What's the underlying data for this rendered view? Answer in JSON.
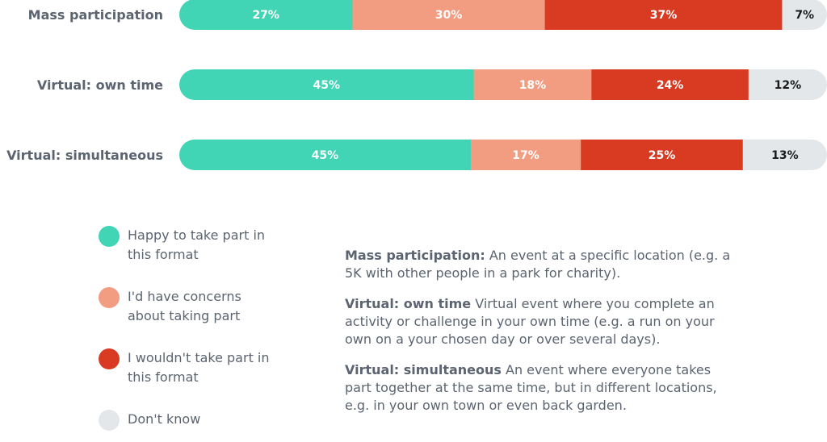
{
  "chart_data": {
    "type": "bar",
    "orientation": "horizontal",
    "stacked": true,
    "categories": [
      "Mass participation",
      "Virtual: own time",
      "Virtual: simultaneous"
    ],
    "series": [
      {
        "name": "Happy to take part in this format",
        "values": [
          27,
          45,
          45
        ],
        "labels": [
          "27%",
          "45%",
          "45%"
        ],
        "color": "#41d5b6",
        "label_color": "#ffffff"
      },
      {
        "name": "I'd have concerns about taking part",
        "values": [
          30,
          18,
          17
        ],
        "labels": [
          "30%",
          "18%",
          "17%"
        ],
        "color": "#f29d82",
        "label_color": "#ffffff"
      },
      {
        "name": "I wouldn't take part in this format",
        "values": [
          37,
          24,
          25
        ],
        "labels": [
          "37%",
          "24%",
          "25%"
        ],
        "color": "#d83b22",
        "label_color": "#ffffff"
      },
      {
        "name": "Don't know",
        "values": [
          7,
          12,
          13
        ],
        "labels": [
          "7%",
          "12%",
          "13%"
        ],
        "color": "#e4e7ea",
        "label_color": "#1a1a1a"
      }
    ],
    "unit": "%",
    "grid": false,
    "legend_position": "bottom-left"
  },
  "legend": {
    "items": [
      {
        "label_line1": "Happy to take part in",
        "label_line2": "this format",
        "color": "#41d5b6"
      },
      {
        "label_line1": "I'd have concerns",
        "label_line2": "about taking part",
        "color": "#f29d82"
      },
      {
        "label_line1": "I wouldn't take part in",
        "label_line2": "this format",
        "color": "#d83b22"
      },
      {
        "label_line1": "Don't know",
        "label_line2": "",
        "color": "#e4e7ea"
      }
    ]
  },
  "definitions": [
    {
      "term": "Mass participation:",
      "text": " An event at a specific location (e.g. a 5K with other people in a park for charity)."
    },
    {
      "term": "Virtual: own time",
      "text": " Virtual event where you complete an activity or challenge in your own time (e.g. a run on your own on a your chosen day or over several days)."
    },
    {
      "term": "Virtual: simultaneous",
      "text": " An event where everyone takes part together at the same time, but in different locations, e.g. in your own town or even back garden."
    }
  ]
}
